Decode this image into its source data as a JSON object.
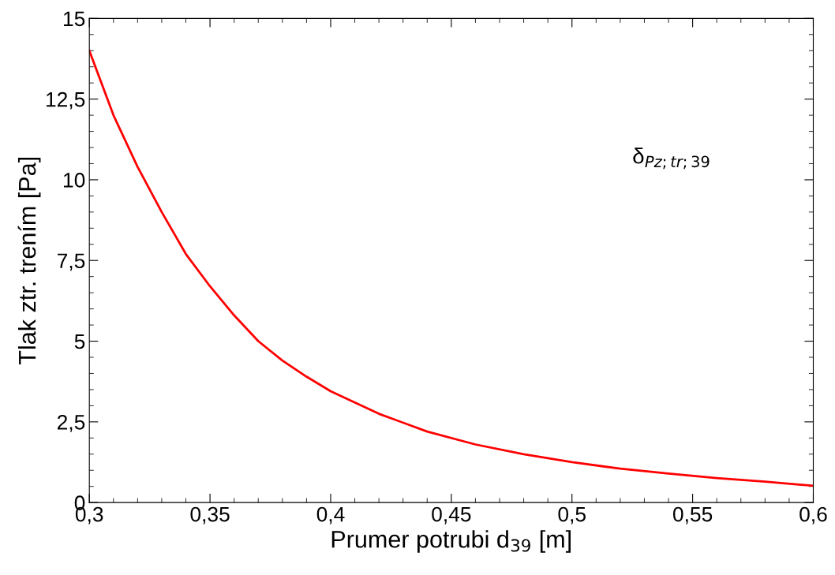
{
  "chart_data": {
    "type": "line",
    "xlabel": "Prumer potrubi d$_{39}$ [m]",
    "ylabel": "Tlak ztr. trením [Pa]",
    "annotations": [
      "δ$_{Pz;tr;39}$"
    ],
    "x": [
      0.3,
      0.31,
      0.32,
      0.33,
      0.34,
      0.35,
      0.36,
      0.37,
      0.38,
      0.39,
      0.4,
      0.42,
      0.44,
      0.46,
      0.48,
      0.5,
      0.52,
      0.54,
      0.56,
      0.58,
      0.6
    ],
    "series": [
      {
        "color": "#ff0000",
        "values": [
          14.0,
          12.0,
          10.4,
          9.0,
          7.7,
          6.7,
          5.8,
          5.0,
          4.4,
          3.9,
          3.45,
          2.75,
          2.2,
          1.8,
          1.5,
          1.25,
          1.05,
          0.9,
          0.76,
          0.65,
          0.52
        ]
      }
    ],
    "xlim": [
      0.3,
      0.6
    ],
    "ylim": [
      0,
      15
    ],
    "xticks": [
      {
        "value": 0.3,
        "label": "0,3"
      },
      {
        "value": 0.35,
        "label": "0,35"
      },
      {
        "value": 0.4,
        "label": "0,4"
      },
      {
        "value": 0.45,
        "label": "0,45"
      },
      {
        "value": 0.5,
        "label": "0,5"
      },
      {
        "value": 0.55,
        "label": "0,55"
      },
      {
        "value": 0.6,
        "label": "0,6"
      },
      {
        "value": 0.31,
        "label": null
      },
      {
        "value": 0.32,
        "label": null
      },
      {
        "value": 0.33,
        "label": null
      },
      {
        "value": 0.34,
        "label": null
      },
      {
        "value": 0.36,
        "label": null
      },
      {
        "value": 0.37,
        "label": null
      },
      {
        "value": 0.38,
        "label": null
      },
      {
        "value": 0.39,
        "label": null
      },
      {
        "value": 0.41,
        "label": null
      },
      {
        "value": 0.42,
        "label": null
      },
      {
        "value": 0.43,
        "label": null
      },
      {
        "value": 0.44,
        "label": null
      },
      {
        "value": 0.46,
        "label": null
      },
      {
        "value": 0.47,
        "label": null
      },
      {
        "value": 0.48,
        "label": null
      },
      {
        "value": 0.49,
        "label": null
      },
      {
        "value": 0.51,
        "label": null
      },
      {
        "value": 0.52,
        "label": null
      },
      {
        "value": 0.53,
        "label": null
      },
      {
        "value": 0.54,
        "label": null
      },
      {
        "value": 0.56,
        "label": null
      },
      {
        "value": 0.57,
        "label": null
      },
      {
        "value": 0.58,
        "label": null
      },
      {
        "value": 0.59,
        "label": null
      }
    ],
    "yticks": [
      0,
      {
        "value": 2.5,
        "label": "2,5"
      },
      5,
      {
        "value": 7.5,
        "label": "7,5"
      },
      10,
      {
        "value": 12.5,
        "label": "12,5"
      },
      15,
      {
        "value": 0.5,
        "label": null
      },
      {
        "value": 1,
        "label": null
      },
      {
        "value": 1.5,
        "label": null
      },
      {
        "value": 2,
        "label": null
      },
      {
        "value": 3,
        "label": null
      },
      {
        "value": 3.5,
        "label": null
      },
      {
        "value": 4,
        "label": null
      },
      {
        "value": 4.5,
        "label": null
      },
      {
        "value": 5.5,
        "label": null
      },
      {
        "value": 6,
        "label": null
      },
      {
        "value": 6.5,
        "label": null
      },
      {
        "value": 7,
        "label": null
      },
      {
        "value": 8,
        "label": null
      },
      {
        "value": 8.5,
        "label": null
      },
      {
        "value": 9,
        "label": null
      },
      {
        "value": 9.5,
        "label": null
      },
      {
        "value": 10.5,
        "label": null
      },
      {
        "value": 11,
        "label": null
      },
      {
        "value": 11.5,
        "label": null
      },
      {
        "value": 12,
        "label": null
      },
      {
        "value": 13,
        "label": null
      },
      {
        "value": 13.5,
        "label": null
      },
      {
        "value": 14,
        "label": null
      },
      {
        "value": 14.5,
        "label": null
      }
    ],
    "grid": false,
    "legend": false,
    "marker": "none",
    "line_style": "solid"
  }
}
